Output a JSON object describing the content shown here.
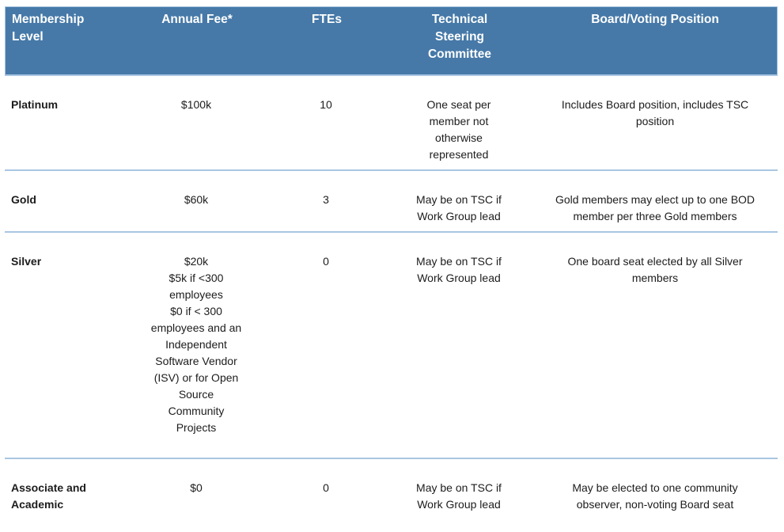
{
  "colors": {
    "header_bg": "#4679a8",
    "header_text": "#ffffff",
    "divider": "#41719c",
    "divider_edge": "#a9c6e2",
    "body_text": "#1c1c1c"
  },
  "table": {
    "columns": {
      "membership_level": "Membership\nLevel",
      "annual_fee": "Annual Fee*",
      "ftes": "FTEs",
      "tsc": "Technical\nSteering\nCommittee",
      "board": "Board/Voting Position"
    },
    "rows": [
      {
        "level": "Platinum",
        "annual_fee": "$100k",
        "ftes": "10",
        "tsc": "One seat per\nmember not\notherwise\nrepresented",
        "board": "Includes Board position, includes TSC\nposition"
      },
      {
        "level": "Gold",
        "annual_fee": "$60k",
        "ftes": "3",
        "tsc": "May be on TSC if\nWork Group lead",
        "board": "Gold members may elect up to one BOD\nmember per three Gold members"
      },
      {
        "level": "Silver",
        "annual_fee": "$20k\n$5k if <300\nemployees\n$0 if < 300\nemployees and an\nIndependent\nSoftware Vendor\n(ISV) or for Open\nSource\nCommunity\nProjects",
        "ftes": "0",
        "tsc": "May be on TSC if\nWork Group lead",
        "board": "One board seat elected by all Silver\nmembers"
      },
      {
        "level": "Associate and\nAcademic",
        "annual_fee": "$0",
        "ftes": "0",
        "tsc": "May be on TSC if\nWork Group lead",
        "board": "May be elected to one community\nobserver, non-voting Board seat"
      }
    ]
  }
}
